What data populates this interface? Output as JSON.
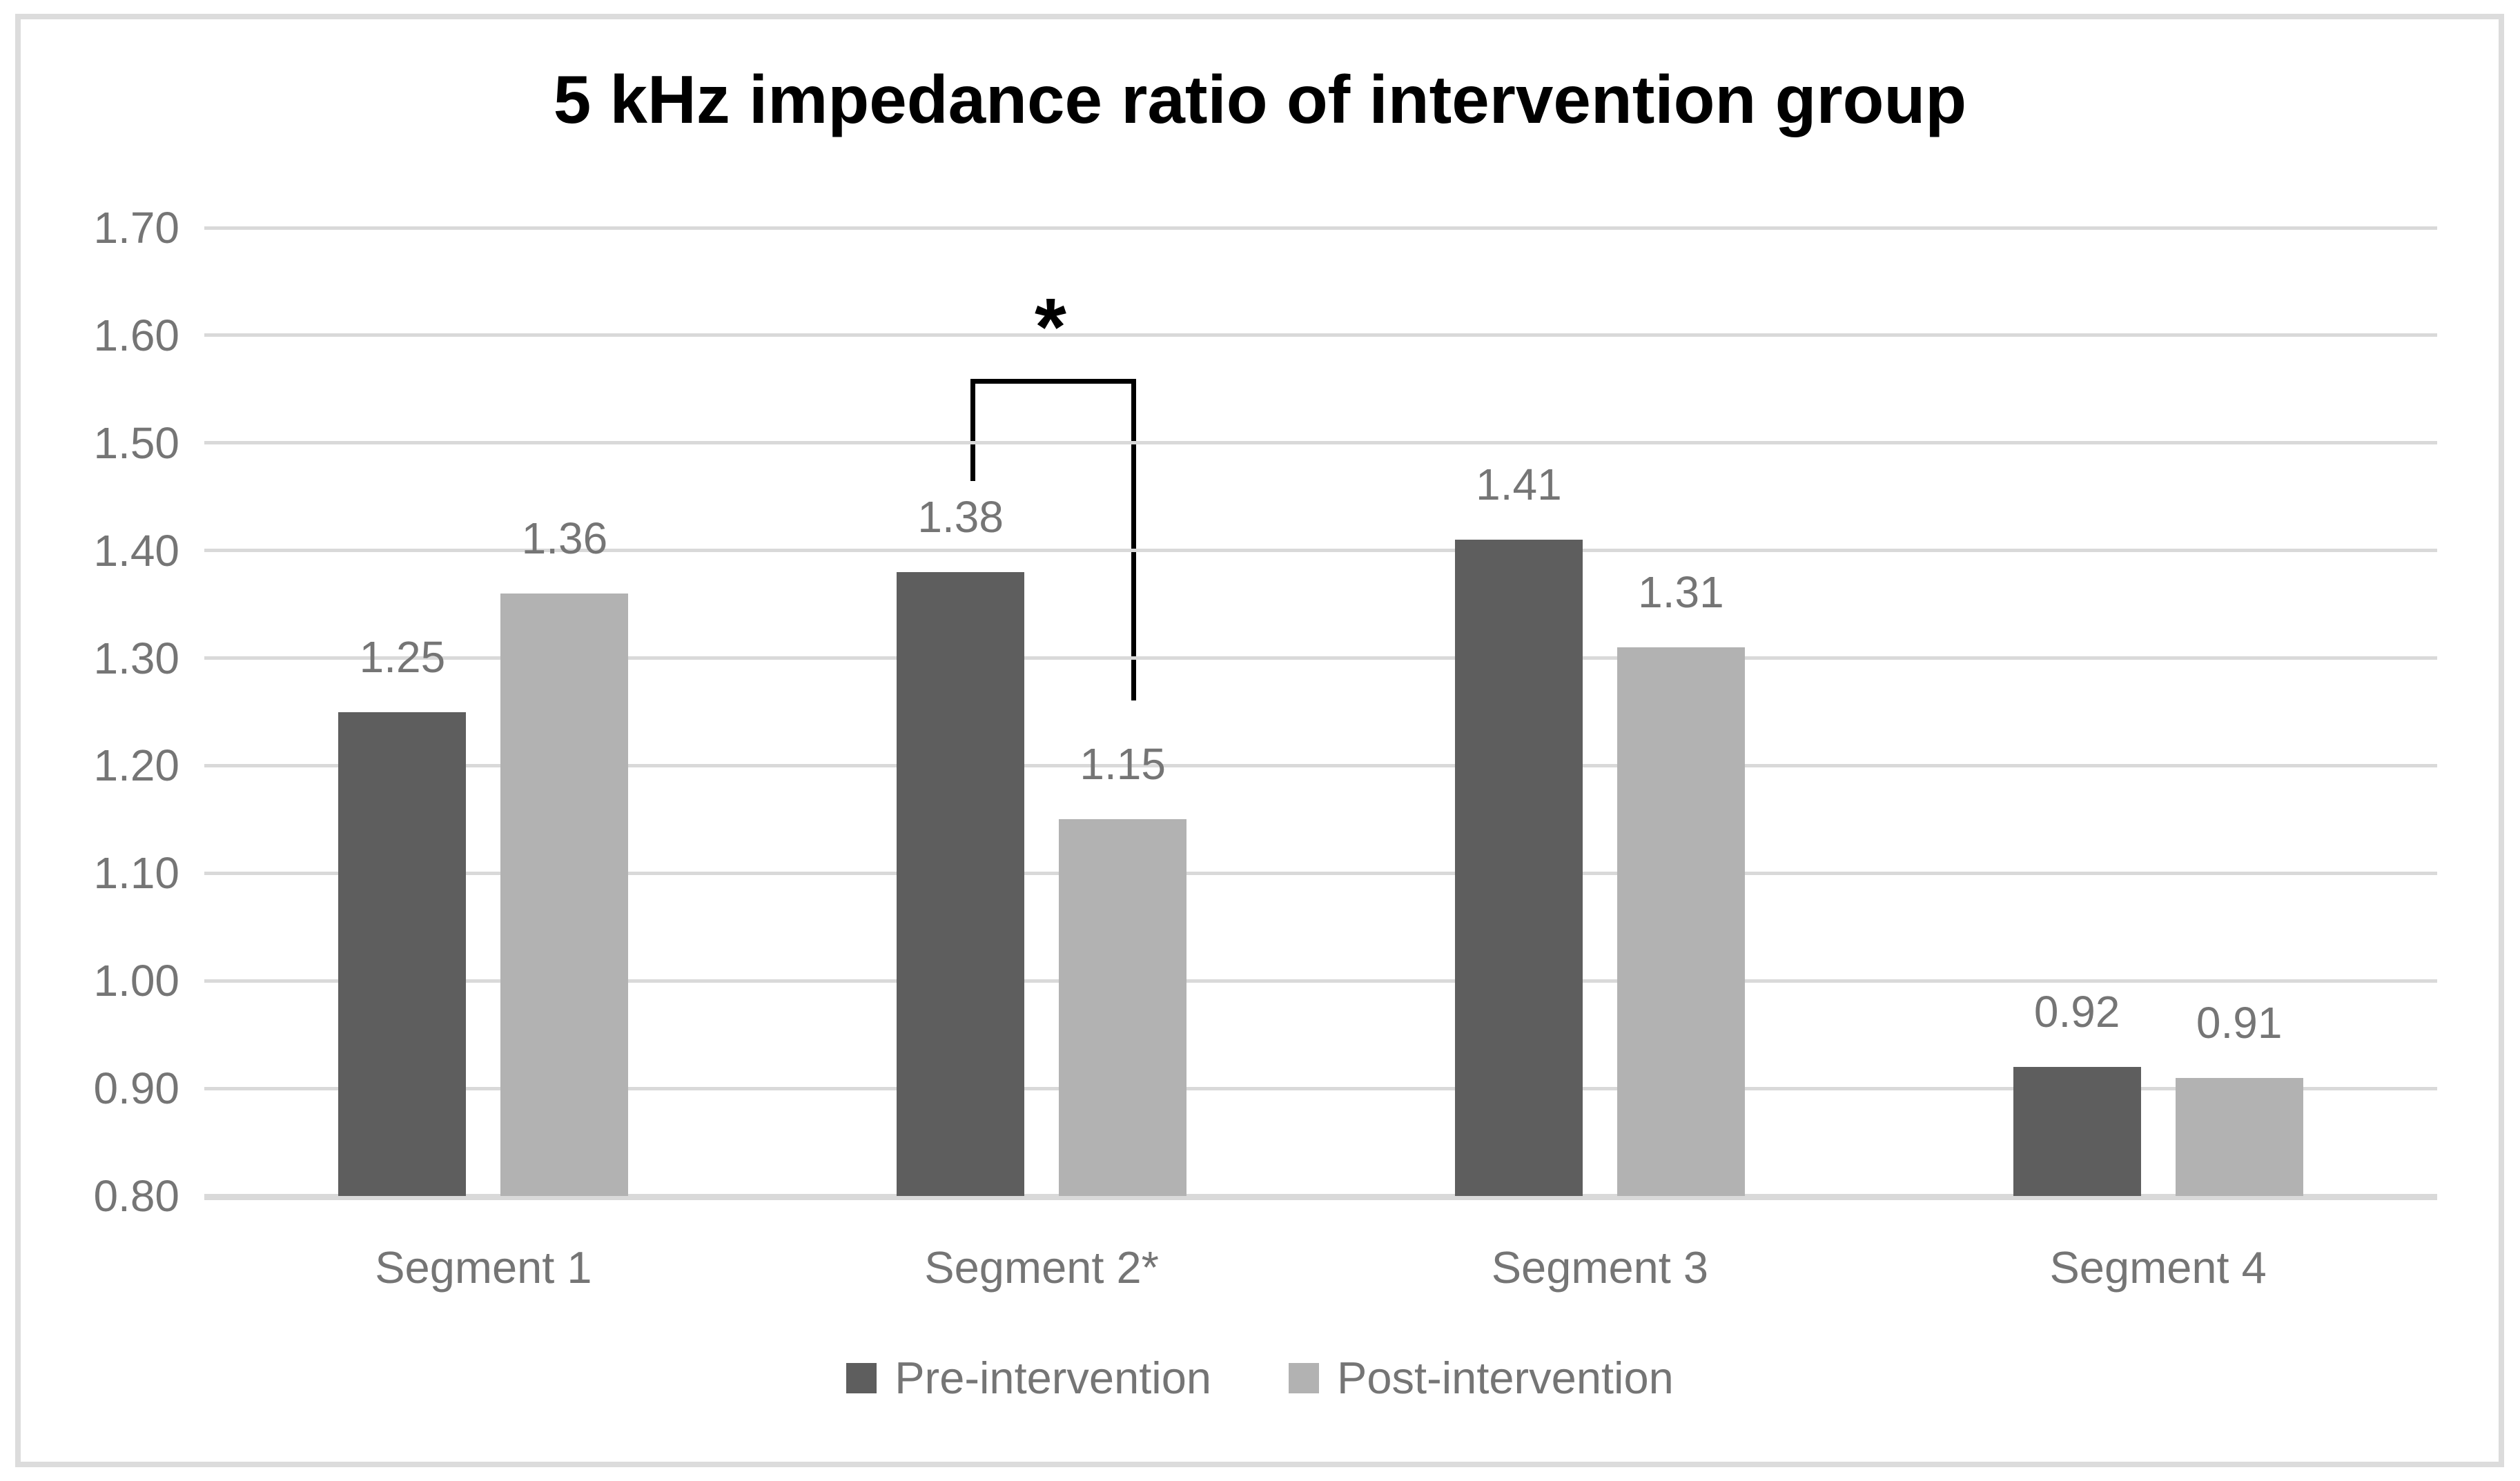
{
  "title": "5 kHz impedance ratio of intervention group",
  "colors": {
    "pre_series": "#5e5e5e",
    "post_series": "#b2b2b2",
    "gridline": "#d9d9d9",
    "axis_text": "#757575",
    "title_text": "#000000",
    "annotation": "#000000"
  },
  "chart_data": {
    "type": "bar",
    "title": "5 kHz impedance ratio of intervention group",
    "categories": [
      "Segment 1",
      "Segment 2*",
      "Segment 3",
      "Segment 4"
    ],
    "series": [
      {
        "name": "Pre-intervention",
        "color": "#5e5e5e",
        "values": [
          1.25,
          1.38,
          1.41,
          0.92
        ]
      },
      {
        "name": "Post-intervention",
        "color": "#b2b2b2",
        "values": [
          1.36,
          1.15,
          1.31,
          0.91
        ]
      }
    ],
    "data_labels": {
      "Pre-intervention": [
        "1.25",
        "1.38",
        "1.41",
        "0.92"
      ],
      "Post-intervention": [
        "1.36",
        "1.15",
        "1.31",
        "0.91"
      ]
    },
    "xlabel": "",
    "ylabel": "",
    "y_axis": {
      "min": 0.8,
      "max": 1.7,
      "step": 0.1,
      "tick_labels": [
        "1.70",
        "1.60",
        "1.50",
        "1.40",
        "1.30",
        "1.20",
        "1.10",
        "1.00",
        "0.90",
        "0.80"
      ]
    },
    "grid": "horizontal",
    "legend_position": "bottom",
    "annotation": {
      "symbol": "*",
      "meaning": "significance marker",
      "target_category": "Segment 2*",
      "connects": [
        "Pre-intervention",
        "Post-intervention"
      ]
    }
  }
}
